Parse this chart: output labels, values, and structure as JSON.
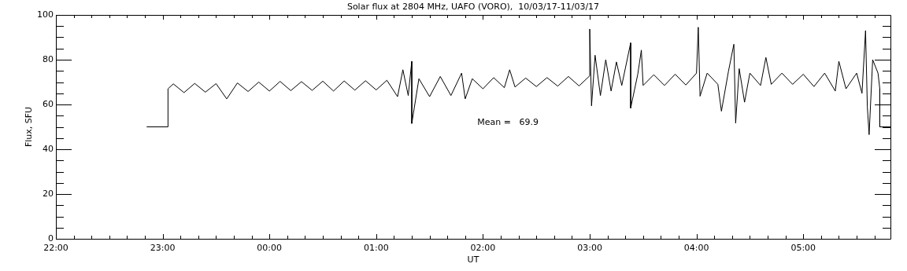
{
  "chart_data": {
    "type": "line",
    "title": "Solar flux at 2804 MHz, UAFO (VORO),  10/03/17-11/03/17",
    "xlabel": "UT",
    "ylabel": "Flux, SFU",
    "annotations": [
      "Mean =   69.9"
    ],
    "xlim": [
      "--03-10T22:00",
      "--03-11T05:49"
    ],
    "ylim": [
      0,
      100
    ],
    "xticks": [
      {
        "value": "--03-10T22:00",
        "label": "22:00"
      },
      {
        "value": "--03-10T22:10",
        "label": null
      },
      {
        "value": "--03-10T22:20",
        "label": null
      },
      {
        "value": "--03-10T22:30",
        "label": null
      },
      {
        "value": "--03-10T22:40",
        "label": null
      },
      {
        "value": "--03-10T22:50",
        "label": null
      },
      {
        "value": "--03-10T23:00",
        "label": "23:00"
      },
      {
        "value": "--03-10T23:10",
        "label": null
      },
      {
        "value": "--03-10T23:20",
        "label": null
      },
      {
        "value": "--03-10T23:30",
        "label": null
      },
      {
        "value": "--03-10T23:40",
        "label": null
      },
      {
        "value": "--03-10T23:50",
        "label": null
      },
      {
        "value": "--03-11T00:00",
        "label": "00:00"
      },
      {
        "value": "--03-11T00:10",
        "label": null
      },
      {
        "value": "--03-11T00:20",
        "label": null
      },
      {
        "value": "--03-11T00:30",
        "label": null
      },
      {
        "value": "--03-11T00:40",
        "label": null
      },
      {
        "value": "--03-11T00:50",
        "label": null
      },
      {
        "value": "--03-11T01:00",
        "label": "01:00"
      },
      {
        "value": "--03-11T01:10",
        "label": null
      },
      {
        "value": "--03-11T01:20",
        "label": null
      },
      {
        "value": "--03-11T01:30",
        "label": null
      },
      {
        "value": "--03-11T01:40",
        "label": null
      },
      {
        "value": "--03-11T01:50",
        "label": null
      },
      {
        "value": "--03-11T02:00",
        "label": "02:00"
      },
      {
        "value": "--03-11T02:10",
        "label": null
      },
      {
        "value": "--03-11T02:20",
        "label": null
      },
      {
        "value": "--03-11T02:30",
        "label": null
      },
      {
        "value": "--03-11T02:40",
        "label": null
      },
      {
        "value": "--03-11T02:50",
        "label": null
      },
      {
        "value": "--03-11T03:00",
        "label": "03:00"
      },
      {
        "value": "--03-11T03:10",
        "label": null
      },
      {
        "value": "--03-11T03:20",
        "label": null
      },
      {
        "value": "--03-11T03:30",
        "label": null
      },
      {
        "value": "--03-11T03:40",
        "label": null
      },
      {
        "value": "--03-11T03:50",
        "label": null
      },
      {
        "value": "--03-11T04:00",
        "label": "04:00"
      },
      {
        "value": "--03-11T04:10",
        "label": null
      },
      {
        "value": "--03-11T04:20",
        "label": null
      },
      {
        "value": "--03-11T04:30",
        "label": null
      },
      {
        "value": "--03-11T04:40",
        "label": null
      },
      {
        "value": "--03-11T04:50",
        "label": null
      },
      {
        "value": "--03-11T05:00",
        "label": "05:00"
      },
      {
        "value": "--03-11T05:10",
        "label": null
      },
      {
        "value": "--03-11T05:20",
        "label": null
      },
      {
        "value": "--03-11T05:30",
        "label": null
      },
      {
        "value": "--03-11T05:40",
        "label": null
      }
    ],
    "yticks": [
      0,
      {
        "value": 5,
        "label": null
      },
      {
        "value": 10,
        "label": null
      },
      {
        "value": 15,
        "label": null
      },
      20,
      {
        "value": 25,
        "label": null
      },
      {
        "value": 30,
        "label": null
      },
      {
        "value": 35,
        "label": null
      },
      40,
      {
        "value": 45,
        "label": null
      },
      {
        "value": 50,
        "label": null
      },
      {
        "value": 55,
        "label": null
      },
      60,
      {
        "value": 65,
        "label": null
      },
      {
        "value": 70,
        "label": null
      },
      {
        "value": 75,
        "label": null
      },
      80,
      {
        "value": 85,
        "label": null
      },
      {
        "value": 90,
        "label": null
      },
      {
        "value": 95,
        "label": null
      },
      100
    ],
    "marker": "none",
    "line_style": "solid",
    "series": [
      {
        "color": "#000000",
        "x": [
          "--03-10T22:51",
          "--03-10T23:03",
          "--03-10T23:03",
          "--03-10T23:06",
          "--03-10T23:12",
          "--03-10T23:18",
          "--03-10T23:24",
          "--03-10T23:30",
          "--03-10T23:36",
          "--03-10T23:42",
          "--03-10T23:48",
          "--03-10T23:54",
          "--03-11T00:00",
          "--03-11T00:06",
          "--03-11T00:12",
          "--03-11T00:18",
          "--03-11T00:24",
          "--03-11T00:30",
          "--03-11T00:36",
          "--03-11T00:42",
          "--03-11T00:48",
          "--03-11T00:54",
          "--03-11T01:00",
          "--03-11T01:06",
          "--03-11T01:12",
          "--03-11T01:15",
          "--03-11T01:18",
          "--03-11T01:20",
          "--03-11T01:20",
          "--03-11T01:24",
          "--03-11T01:30",
          "--03-11T01:36",
          "--03-11T01:42",
          "--03-11T01:48",
          "--03-11T01:50",
          "--03-11T01:54",
          "--03-11T02:00",
          "--03-11T02:06",
          "--03-11T02:12",
          "--03-11T02:15",
          "--03-11T02:18",
          "--03-11T02:24",
          "--03-11T02:30",
          "--03-11T02:36",
          "--03-11T02:42",
          "--03-11T02:48",
          "--03-11T02:54",
          "--03-11T03:00",
          "--03-11T03:00",
          "--03-11T03:01",
          "--03-11T03:03",
          "--03-11T03:06",
          "--03-11T03:09",
          "--03-11T03:12",
          "--03-11T03:15",
          "--03-11T03:18",
          "--03-11T03:23",
          "--03-11T03:23",
          "--03-11T03:27",
          "--03-11T03:29",
          "--03-11T03:30",
          "--03-11T03:36",
          "--03-11T03:42",
          "--03-11T03:48",
          "--03-11T03:54",
          "--03-11T04:00",
          "--03-11T04:01",
          "--03-11T04:02",
          "--03-11T04:06",
          "--03-11T04:12",
          "--03-11T04:14",
          "--03-11T04:18",
          "--03-11T04:21",
          "--03-11T04:22",
          "--03-11T04:24",
          "--03-11T04:27",
          "--03-11T04:30",
          "--03-11T04:36",
          "--03-11T04:39",
          "--03-11T04:42",
          "--03-11T04:48",
          "--03-11T04:54",
          "--03-11T05:00",
          "--03-11T05:06",
          "--03-11T05:12",
          "--03-11T05:18",
          "--03-11T05:20",
          "--03-11T05:24",
          "--03-11T05:30",
          "--03-11T05:33",
          "--03-11T05:35",
          "--03-11T05:36",
          "--03-11T05:37",
          "--03-11T05:39",
          "--03-11T05:42",
          "--03-11T05:43",
          "--03-11T05:43",
          "--03-11T05:49"
        ],
        "values": [
          50,
          50,
          67,
          69.2,
          65.3,
          69.4,
          65.5,
          69.3,
          62.5,
          69.6,
          65.8,
          70,
          66,
          70.3,
          66.2,
          70.2,
          66.3,
          70.4,
          66,
          70.5,
          66.4,
          70.6,
          66.5,
          70.8,
          63.5,
          75.5,
          64,
          79.3,
          51.5,
          71.5,
          63.5,
          72.5,
          64,
          74,
          62.5,
          71.5,
          67,
          72,
          67.5,
          75.5,
          67.8,
          71.8,
          68,
          72,
          68.2,
          72.5,
          68.3,
          72.8,
          93.7,
          59.4,
          82,
          64,
          80,
          66,
          79,
          68.5,
          87.5,
          58.4,
          73.5,
          84.3,
          68.5,
          73.3,
          68.5,
          73.5,
          68.7,
          74,
          94.5,
          63.7,
          74,
          69,
          57,
          75,
          86.9,
          51.7,
          76,
          61,
          74,
          68.5,
          81,
          69,
          74,
          69,
          73.5,
          68,
          74,
          66,
          79.3,
          67,
          74,
          65,
          93,
          59,
          46.5,
          80,
          74,
          67,
          50,
          50
        ]
      }
    ]
  }
}
